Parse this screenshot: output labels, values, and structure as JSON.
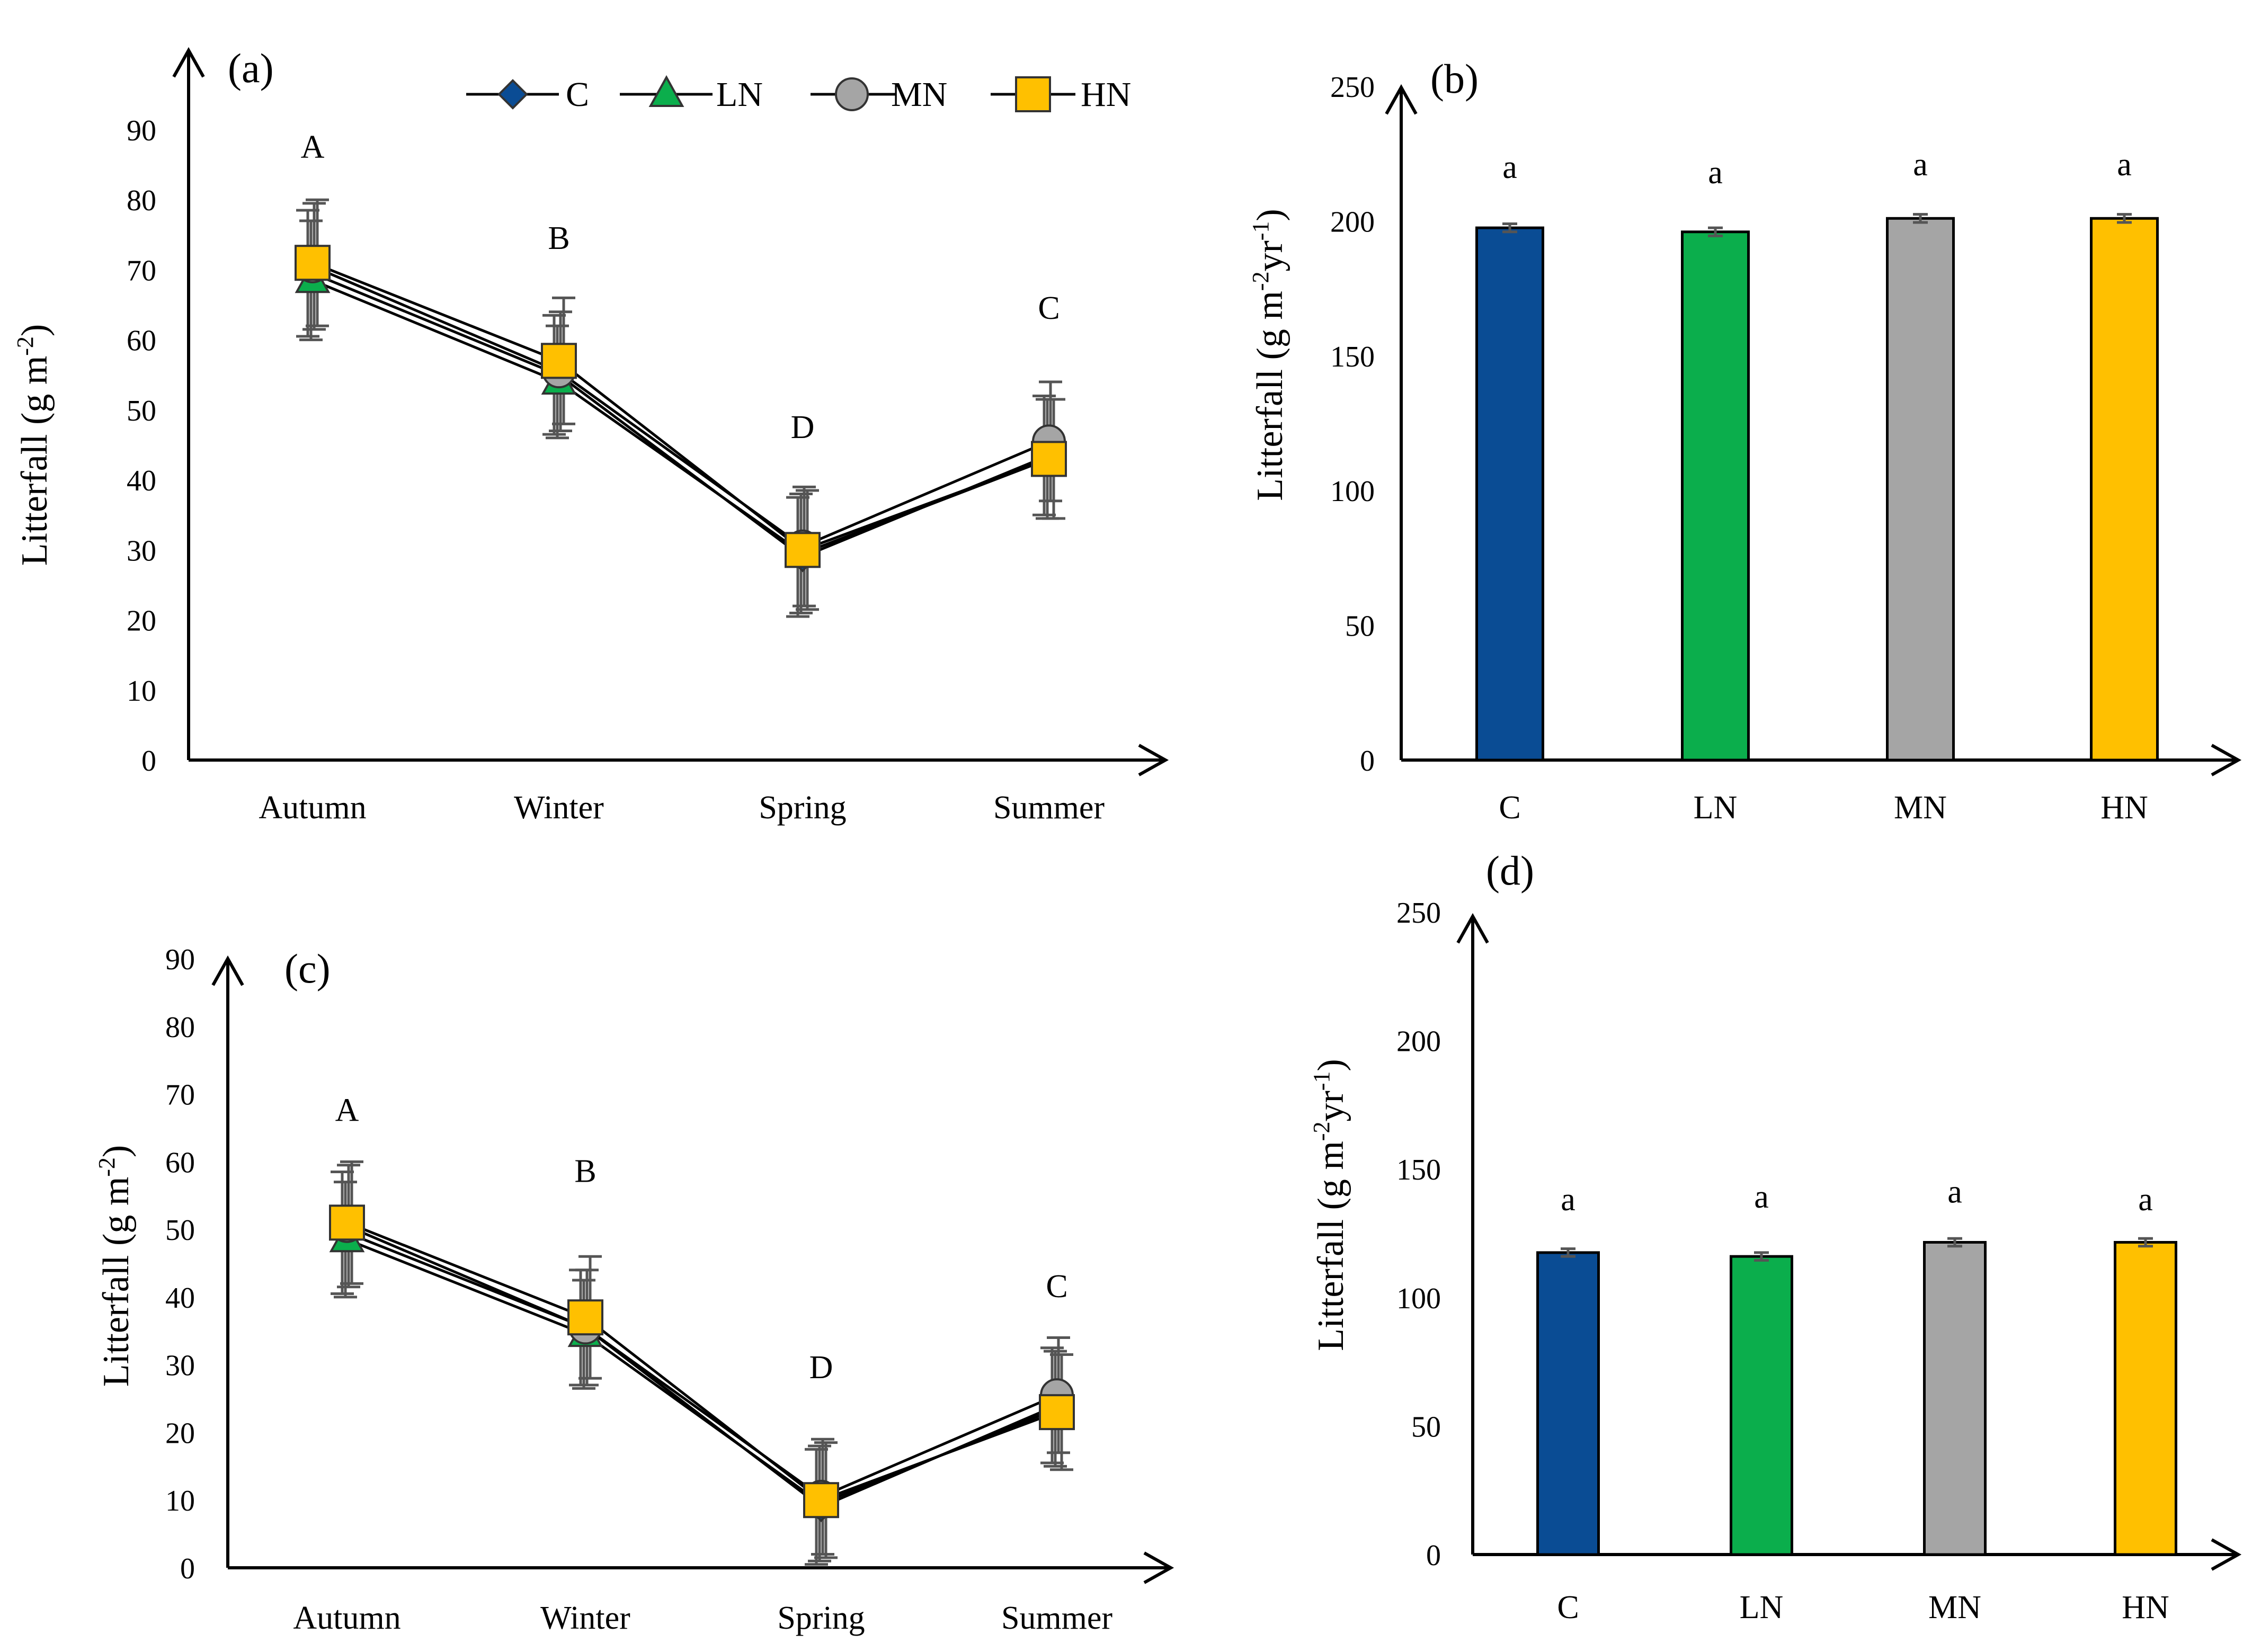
{
  "colors": {
    "C": "#0A4C94",
    "LN": "#0BAE4C",
    "MN": "#A5A5A5",
    "HN": "#FFC000",
    "axis": "#000000",
    "errorbar": "#555555"
  },
  "legend": [
    {
      "key": "C",
      "label": "C",
      "marker": "diamond"
    },
    {
      "key": "LN",
      "label": "LN",
      "marker": "triangle"
    },
    {
      "key": "MN",
      "label": "MN",
      "marker": "circle"
    },
    {
      "key": "HN",
      "label": "HN",
      "marker": "square"
    }
  ],
  "chart_data": [
    {
      "panel": "(a)",
      "type": "line",
      "ylabel_main": "Litterfall  (g m",
      "ylabel_sup": "-2",
      "ylabel_end": ")",
      "ylim": [
        0,
        90
      ],
      "yticks": [
        0,
        10,
        20,
        30,
        40,
        50,
        60,
        70,
        80,
        90
      ],
      "categories": [
        "Autumn",
        "Winter",
        "Spring",
        "Summer"
      ],
      "significance": [
        "A",
        "B",
        "D",
        "C"
      ],
      "sig_values": [
        86,
        73,
        46,
        63
      ],
      "series": [
        {
          "name": "C",
          "values": [
            69.5,
            55.0,
            29.0,
            43.5
          ],
          "errors": [
            9.0,
            8.5,
            8.5,
            8.5
          ]
        },
        {
          "name": "LN",
          "values": [
            68.5,
            54.0,
            29.5,
            43.0
          ],
          "errors": [
            8.5,
            8.0,
            8.5,
            8.5
          ]
        },
        {
          "name": "MN",
          "values": [
            70.5,
            55.5,
            30.5,
            45.5
          ],
          "errors": [
            9.0,
            8.5,
            8.5,
            8.5
          ]
        },
        {
          "name": "HN",
          "values": [
            71.0,
            57.0,
            30.0,
            43.0
          ],
          "errors": [
            9.0,
            9.0,
            8.5,
            8.5
          ]
        }
      ]
    },
    {
      "panel": "(b)",
      "type": "bar",
      "ylabel_main": "Litterfall  (g m",
      "ylabel_sup": "-2",
      "ylabel_mid": "yr",
      "ylabel_sup2": "-1",
      "ylabel_end": ")",
      "ylim": [
        0,
        250
      ],
      "yticks": [
        0,
        50,
        100,
        150,
        200,
        250
      ],
      "categories": [
        "C",
        "LN",
        "MN",
        "HN"
      ],
      "values": [
        197.5,
        196.0,
        201.0,
        201.0
      ],
      "errors": [
        1.5,
        1.5,
        1.5,
        1.5
      ],
      "significance": [
        "a",
        "a",
        "a",
        "a"
      ],
      "sig_values": [
        216,
        214,
        217,
        217
      ]
    },
    {
      "panel": "(c)",
      "type": "line",
      "ylabel_main": "Litterfall  (g m",
      "ylabel_sup": "-2",
      "ylabel_end": ")",
      "ylim": [
        0,
        90
      ],
      "yticks": [
        0,
        10,
        20,
        30,
        40,
        50,
        60,
        70,
        80,
        90
      ],
      "categories": [
        "Autumn",
        "Winter",
        "Spring",
        "Summer"
      ],
      "significance": [
        "A",
        "B",
        "D",
        "C"
      ],
      "sig_values": [
        66,
        57,
        28,
        40
      ],
      "series": [
        {
          "name": "C",
          "values": [
            49.5,
            35.5,
            9.0,
            24.0
          ],
          "errors": [
            9.0,
            8.5,
            8.5,
            8.5
          ]
        },
        {
          "name": "LN",
          "values": [
            48.5,
            34.5,
            9.5,
            23.5
          ],
          "errors": [
            8.5,
            8.0,
            8.5,
            8.5
          ]
        },
        {
          "name": "MN",
          "values": [
            50.5,
            35.5,
            10.5,
            25.5
          ],
          "errors": [
            9.0,
            8.5,
            8.5,
            8.5
          ]
        },
        {
          "name": "HN",
          "values": [
            51.0,
            37.0,
            10.0,
            23.0
          ],
          "errors": [
            9.0,
            9.0,
            8.5,
            8.5
          ]
        }
      ]
    },
    {
      "panel": "(d)",
      "type": "bar",
      "ylabel_main": "Litterfall  (g m",
      "ylabel_sup": "-2",
      "ylabel_mid": "yr",
      "ylabel_sup2": "-1",
      "ylabel_end": ")",
      "ylim": [
        0,
        250
      ],
      "yticks": [
        0,
        50,
        100,
        150,
        200,
        250
      ],
      "categories": [
        "C",
        "LN",
        "MN",
        "HN"
      ],
      "values": [
        117.5,
        116.0,
        121.5,
        121.5
      ],
      "errors": [
        1.5,
        1.5,
        1.5,
        1.5
      ],
      "significance": [
        "a",
        "a",
        "a",
        "a"
      ],
      "sig_values": [
        134,
        135,
        137,
        134
      ]
    }
  ]
}
